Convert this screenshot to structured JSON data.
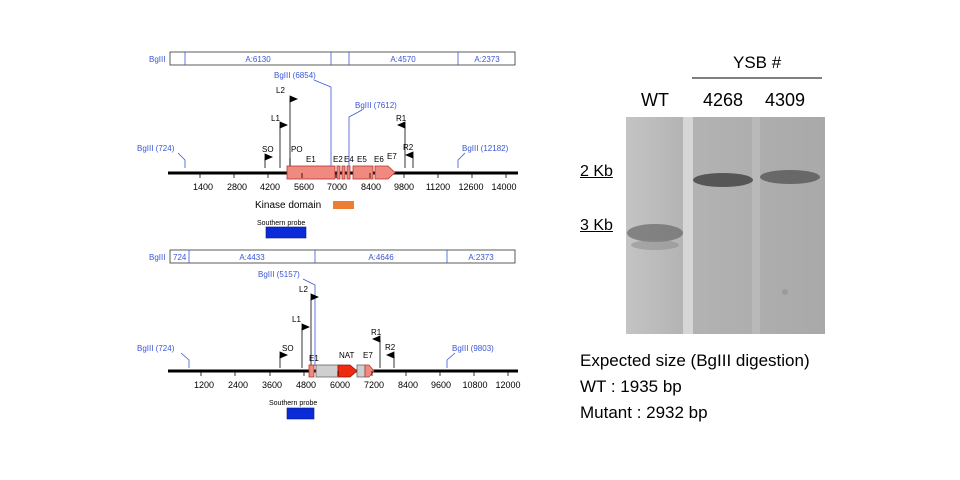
{
  "wt_map": {
    "frag_left": "BgIII",
    "fragments": [
      "A:6130",
      "A:4570",
      "A:2373"
    ],
    "sites": [
      "BgIII (724)",
      "BgIII (6854)",
      "BgIII (7612)",
      "BgIII (12182)"
    ],
    "markers": [
      "L2",
      "L1",
      "R1",
      "SO",
      "PO",
      "R2"
    ],
    "exons": [
      "E1",
      "E2",
      "E4",
      "E5",
      "E6",
      "E7"
    ],
    "ticks": [
      "1400",
      "2800",
      "4200",
      "5600",
      "7000",
      "8400",
      "9800",
      "11200",
      "12600",
      "14000"
    ],
    "kinase_label": "Kinase domain",
    "probe_label": "Southern probe"
  },
  "mut_map": {
    "frag_left": "BgIII",
    "fragments": [
      "724",
      "A:4433",
      "A:4646",
      "A:2373"
    ],
    "sites": [
      "BgIII (5157)",
      "BgIII (724)",
      "BgIII (9803)"
    ],
    "markers": [
      "L2",
      "L1",
      "R1",
      "SO",
      "R2"
    ],
    "exons": [
      "E1",
      "NAT",
      "E7"
    ],
    "ticks": [
      "1200",
      "2400",
      "3600",
      "4800",
      "6000",
      "7200",
      "8400",
      "9600",
      "10800",
      "12000"
    ],
    "probe_label": "Southern probe"
  },
  "gel": {
    "header": "YSB #",
    "lanes": [
      "WT",
      "4268",
      "4309"
    ],
    "markers": [
      "2 Kb",
      "3 Kb"
    ]
  },
  "caption": {
    "title": "Expected size (BgIII digestion)",
    "wt": "WT : 1935 bp",
    "mutant": "Mutant : 2932 bp"
  },
  "colors": {
    "site_blue": "#3a55d6",
    "exon_salmon": "#f08a80",
    "kinase_orange": "#ee7d32",
    "probe_blue": "#0c2bd8",
    "nat_red": "#ee2a10",
    "gray_box": "#cfcfcf"
  }
}
